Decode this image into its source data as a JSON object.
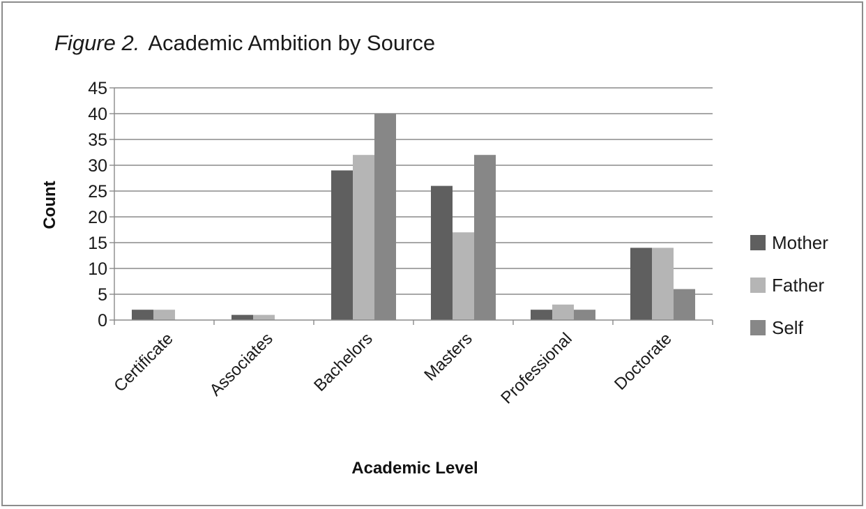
{
  "chart_data": {
    "type": "bar",
    "title_prefix": "Figure 2.",
    "title_text": "Academic Ambition by Source",
    "xlabel": "Academic Level",
    "ylabel": "Count",
    "ylim": [
      0,
      45
    ],
    "yticks": [
      "0",
      "5",
      "10",
      "15",
      "20",
      "25",
      "30",
      "35",
      "40",
      "45"
    ],
    "grid": true,
    "legend_position": "right",
    "categories": [
      "Certificate",
      "Associates",
      "Bachelors",
      "Masters",
      "Professional",
      "Doctorate"
    ],
    "series": [
      {
        "name": "Mother",
        "color": "#5f5f5f",
        "values": [
          2,
          1,
          29,
          26,
          2,
          14
        ]
      },
      {
        "name": "Father",
        "color": "#b5b5b5",
        "values": [
          2,
          1,
          32,
          17,
          3,
          14
        ]
      },
      {
        "name": "Self",
        "color": "#878787",
        "values": [
          0,
          0,
          40,
          32,
          2,
          6
        ]
      }
    ]
  }
}
